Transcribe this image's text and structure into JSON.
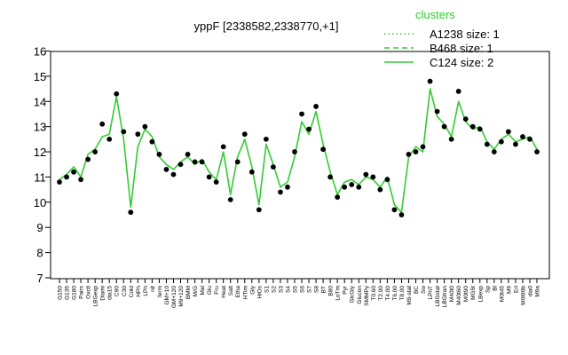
{
  "chart_data": {
    "type": "line",
    "title": "yppF [2338582,2338770,+1]",
    "xlabel": "",
    "ylabel": "",
    "ylim": [
      7,
      16
    ],
    "yticks": [
      7,
      8,
      9,
      10,
      11,
      12,
      13,
      14,
      15,
      16
    ],
    "grid": false,
    "legend": {
      "title": "clusters",
      "placement": "top-right",
      "entries": [
        {
          "label": "A1238 size: 1",
          "style": "dotted"
        },
        {
          "label": "B468 size: 1",
          "style": "dashed"
        },
        {
          "label": "C124 size: 2",
          "style": "solid"
        }
      ]
    },
    "line_color": "#33cc33",
    "point_color": "#000000",
    "x_tick_labels": [
      "G150",
      "G135",
      "G180",
      "Pairs",
      "Oxctl",
      "LBGexp",
      "Diami",
      "dia15",
      "C90",
      "C30",
      "Cold",
      "HPh",
      "LPh",
      "nit",
      "ferm",
      "GM+10",
      "GM+120",
      "M9+120",
      "BMM",
      "M/G",
      "Mal",
      "Glu",
      "Fru",
      "Heat",
      "Salt",
      "Etha",
      "HTim",
      "Gly",
      "HiOs",
      "S1",
      "S2",
      "S3",
      "S4",
      "S5",
      "S6",
      "S7",
      "S8",
      "BT",
      "B80",
      "LoTm",
      "Pyr",
      "GlcGly",
      "Glucon",
      "SMMPy",
      "T0.60",
      "T2.00",
      "T4.00",
      "T6.00",
      "T8.00",
      "M9-stat",
      "BC",
      "Sw",
      "LPhT",
      "LBGstat",
      "LBGtran",
      "M40t0",
      "M40t60",
      "M0t90",
      "MG5t",
      "LBexp",
      "Sp",
      "Bl",
      "M0t45",
      "M9",
      "Erl",
      "M0t90b",
      "dia0",
      "M9a"
    ],
    "series": [
      {
        "name": "C124 size: 2",
        "values": [
          10.9,
          11.1,
          11.4,
          11.0,
          11.9,
          12.1,
          12.6,
          12.7,
          14.2,
          12.5,
          9.8,
          12.2,
          12.9,
          12.6,
          11.8,
          11.5,
          11.3,
          11.6,
          11.8,
          11.5,
          11.7,
          11.2,
          10.9,
          12.0,
          10.3,
          11.8,
          12.5,
          11.4,
          9.9,
          12.3,
          11.5,
          10.6,
          10.8,
          11.8,
          13.2,
          12.7,
          13.6,
          12.3,
          11.2,
          10.3,
          10.8,
          10.9,
          10.7,
          11.0,
          10.9,
          10.6,
          11.0,
          9.9,
          9.6,
          11.8,
          12.2,
          12.0,
          14.5,
          13.4,
          13.1,
          12.6,
          14.0,
          13.2,
          12.9,
          13.0,
          12.4,
          12.1,
          12.5,
          12.7,
          12.4,
          12.5,
          12.6,
          12.1
        ]
      }
    ],
    "points": [
      10.8,
      11.0,
      11.2,
      10.9,
      11.7,
      12.0,
      13.1,
      12.5,
      14.3,
      12.8,
      9.6,
      12.7,
      13.0,
      12.4,
      11.9,
      11.3,
      11.1,
      11.5,
      11.9,
      11.6,
      11.6,
      11.0,
      10.8,
      12.2,
      10.1,
      11.6,
      12.7,
      11.2,
      9.7,
      12.5,
      11.4,
      10.4,
      10.6,
      12.0,
      13.5,
      12.9,
      13.8,
      12.1,
      11.0,
      10.2,
      10.6,
      10.7,
      10.6,
      11.1,
      11.0,
      10.5,
      10.9,
      9.7,
      9.5,
      11.9,
      12.0,
      12.2,
      14.8,
      13.6,
      13.0,
      12.5,
      14.4,
      13.3,
      13.0,
      12.9,
      12.3,
      12.0,
      12.4,
      12.8,
      12.3,
      12.6,
      12.5,
      12.0
    ]
  }
}
